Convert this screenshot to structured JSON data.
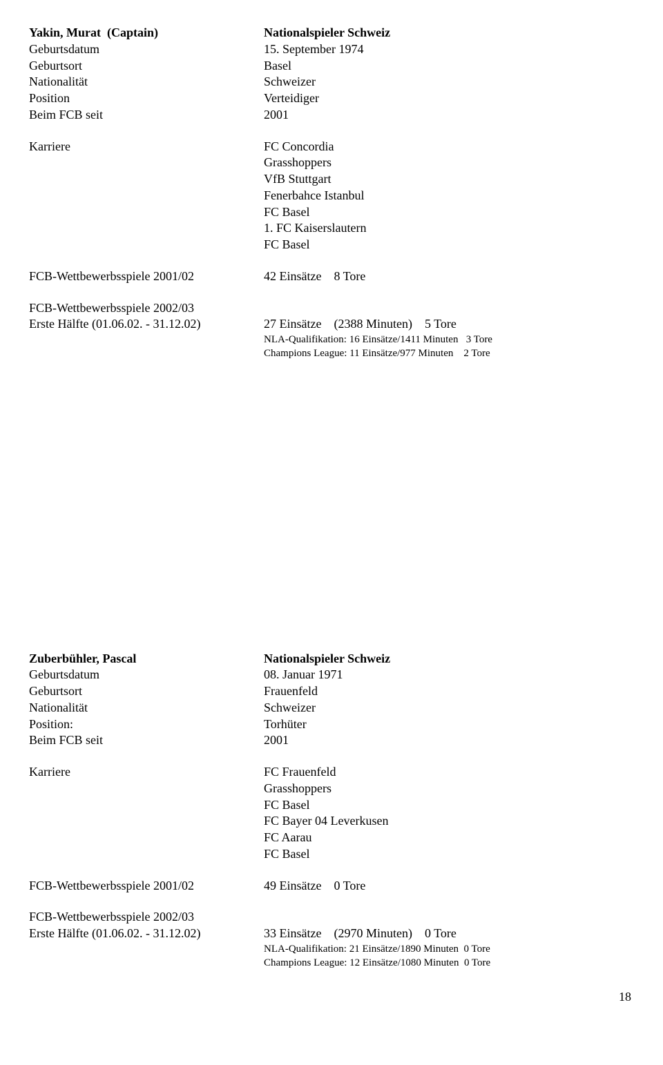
{
  "player1": {
    "name": "Yakin, Murat",
    "captain": "(Captain)",
    "role_label": "Nationalspieler Schweiz",
    "birthdate_label": "Geburtsdatum",
    "birthdate": "15. September 1974",
    "birthplace_label": "Geburtsort",
    "birthplace": "Basel",
    "nationality_label": "Nationalität",
    "nationality": "Schweizer",
    "position_label": "Position",
    "position": "Verteidiger",
    "since_label": "Beim FCB seit",
    "since": "2001",
    "career_label": "Karriere",
    "career": [
      "FC Concordia",
      "Grasshoppers",
      "VfB Stuttgart",
      "Fenerbahce Istanbul",
      "FC Basel",
      "1.  FC Kaiserslautern",
      "FC Basel"
    ],
    "fcb0102_label": "FCB-Wettbewerbsspiele 2001/02",
    "fcb0102_value": "42 Einsätze    8 Tore",
    "fcb0203_label": "FCB-Wettbewerbsspiele 2002/03",
    "half_label": "Erste Hälfte (01.06.02. - 31.12.02)",
    "half_value": "27 Einsätze    (2388 Minuten)    5 Tore",
    "sub1": "NLA-Qualifikation: 16 Einsätze/1411 Minuten   3 Tore",
    "sub2": "Champions League: 11 Einsätze/977 Minuten    2 Tore"
  },
  "player2": {
    "name": "Zuberbühler, Pascal",
    "role_label": "Nationalspieler Schweiz",
    "birthdate_label": "Geburtsdatum",
    "birthdate": "08. Januar 1971",
    "birthplace_label": "Geburtsort",
    "birthplace": "Frauenfeld",
    "nationality_label": "Nationalität",
    "nationality": "Schweizer",
    "position_label": "Position:",
    "position": "Torhüter",
    "since_label": "Beim FCB seit",
    "since": "2001",
    "career_label": "Karriere",
    "career": [
      "FC Frauenfeld",
      "Grasshoppers",
      "FC Basel",
      "FC Bayer 04 Leverkusen",
      "FC Aarau",
      "FC Basel"
    ],
    "fcb0102_label": "FCB-Wettbewerbsspiele 2001/02",
    "fcb0102_value": "49 Einsätze    0 Tore",
    "fcb0203_label": "FCB-Wettbewerbsspiele 2002/03",
    "half_label": "Erste Hälfte (01.06.02. - 31.12.02)",
    "half_value": "33 Einsätze    (2970 Minuten)    0 Tore",
    "sub1": "NLA-Qualifikation: 21 Einsätze/1890 Minuten  0 Tore",
    "sub2": "Champions League: 12 Einsätze/1080 Minuten  0 Tore"
  },
  "page_number": "18"
}
